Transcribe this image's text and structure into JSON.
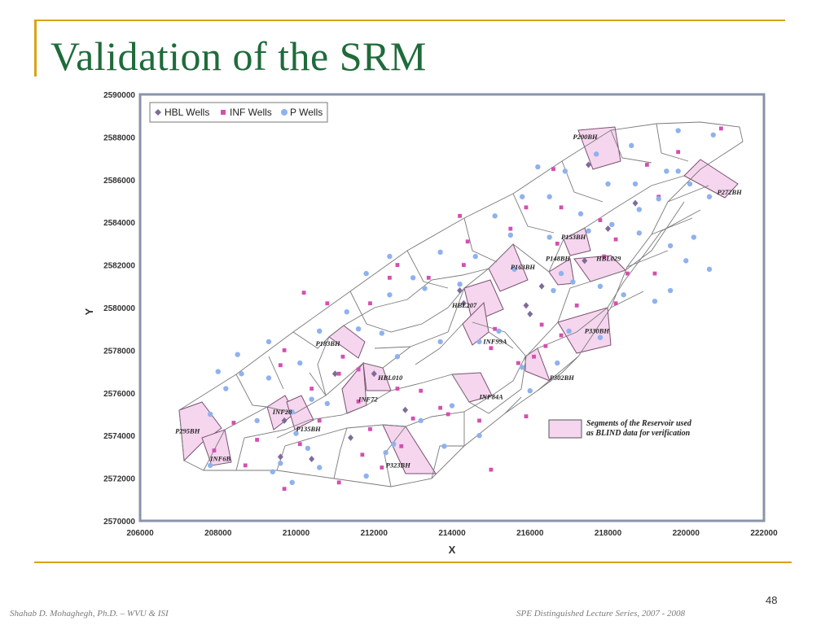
{
  "slide": {
    "title": "Validation of  the SRM",
    "page_number": "48",
    "footer_left": "Shahab D. Mohaghegh, Ph.D. – WVU & ISI",
    "footer_right": "SPE Distinguished Lecture Series, 2007 - 2008",
    "colors": {
      "title": "#1f6b3b",
      "accent": "#d8a316"
    }
  },
  "chart_data": {
    "type": "scatter",
    "xlabel": "X",
    "ylabel": "Y",
    "xlim": [
      206000,
      222000
    ],
    "ylim": [
      2570000,
      2590000
    ],
    "x_ticks": [
      "206000",
      "208000",
      "210000",
      "212000",
      "214000",
      "216000",
      "218000",
      "220000",
      "222000"
    ],
    "y_ticks": [
      "2570000",
      "2572000",
      "2574000",
      "2576000",
      "2578000",
      "2580000",
      "2582000",
      "2584000",
      "2586000",
      "2588000",
      "2590000"
    ],
    "legend": {
      "placement": "top-left",
      "items": [
        {
          "label": "HBL Wells",
          "color": "#7f6b99",
          "marker": "diamond"
        },
        {
          "label": "INF Wells",
          "color": "#d54fb0",
          "marker": "square"
        },
        {
          "label": "P Wells",
          "color": "#8fb2ee",
          "marker": "circle"
        }
      ]
    },
    "blind_legend": {
      "text_line1": "Segments of the Reservoir used",
      "text_line2": "as BLIND data for verification",
      "color": "#f5d6ee"
    },
    "series": [
      {
        "name": "HBL Wells",
        "color": "#7f6b99",
        "marker": "diamond",
        "points": [
          [
            217500,
            2586700
          ],
          [
            218700,
            2584900
          ],
          [
            218000,
            2583700
          ],
          [
            217400,
            2582200
          ],
          [
            216300,
            2581000
          ],
          [
            215900,
            2580100
          ],
          [
            216000,
            2579700
          ],
          [
            214200,
            2580800
          ],
          [
            214300,
            2580200
          ],
          [
            212000,
            2576900
          ],
          [
            211000,
            2576900
          ],
          [
            212800,
            2575200
          ],
          [
            211400,
            2573900
          ],
          [
            210400,
            2572900
          ],
          [
            209600,
            2573000
          ],
          [
            209700,
            2574700
          ]
        ]
      },
      {
        "name": "INF Wells",
        "color": "#d54fb0",
        "marker": "square",
        "points": [
          [
            220900,
            2588400
          ],
          [
            219800,
            2587300
          ],
          [
            219000,
            2586700
          ],
          [
            216600,
            2586500
          ],
          [
            219300,
            2585200
          ],
          [
            217800,
            2584100
          ],
          [
            218200,
            2583200
          ],
          [
            216800,
            2584700
          ],
          [
            215900,
            2584700
          ],
          [
            214200,
            2584300
          ],
          [
            215500,
            2583700
          ],
          [
            216700,
            2583000
          ],
          [
            214400,
            2583100
          ],
          [
            214300,
            2582000
          ],
          [
            213400,
            2581400
          ],
          [
            212600,
            2582000
          ],
          [
            212400,
            2581400
          ],
          [
            210200,
            2580700
          ],
          [
            210800,
            2580200
          ],
          [
            211900,
            2580200
          ],
          [
            210600,
            2578900
          ],
          [
            209700,
            2578000
          ],
          [
            209600,
            2577300
          ],
          [
            211200,
            2577700
          ],
          [
            211600,
            2577100
          ],
          [
            211100,
            2576900
          ],
          [
            211600,
            2575600
          ],
          [
            212600,
            2576200
          ],
          [
            213200,
            2576100
          ],
          [
            213700,
            2575300
          ],
          [
            213000,
            2574800
          ],
          [
            213900,
            2575000
          ],
          [
            214700,
            2574700
          ],
          [
            215000,
            2578100
          ],
          [
            215100,
            2579000
          ],
          [
            215700,
            2577400
          ],
          [
            216100,
            2577700
          ],
          [
            216400,
            2578200
          ],
          [
            216800,
            2578700
          ],
          [
            216300,
            2579200
          ],
          [
            217200,
            2580100
          ],
          [
            218200,
            2580200
          ],
          [
            218500,
            2581600
          ],
          [
            219200,
            2581600
          ],
          [
            212700,
            2573500
          ],
          [
            212200,
            2572500
          ],
          [
            211900,
            2574300
          ],
          [
            211700,
            2573100
          ],
          [
            210600,
            2574700
          ],
          [
            210100,
            2573600
          ],
          [
            209000,
            2573800
          ],
          [
            208400,
            2574600
          ],
          [
            208700,
            2572600
          ],
          [
            207900,
            2573300
          ],
          [
            209700,
            2571500
          ],
          [
            211100,
            2571800
          ],
          [
            215000,
            2572400
          ],
          [
            215900,
            2574900
          ],
          [
            217900,
            2582400
          ],
          [
            210400,
            2576200
          ]
        ]
      },
      {
        "name": "P Wells",
        "color": "#8fb2ee",
        "marker": "circle",
        "points": [
          [
            219800,
            2588300
          ],
          [
            220700,
            2588100
          ],
          [
            218600,
            2587600
          ],
          [
            217700,
            2587200
          ],
          [
            216900,
            2586400
          ],
          [
            216200,
            2586600
          ],
          [
            218000,
            2585800
          ],
          [
            218700,
            2585800
          ],
          [
            219500,
            2586400
          ],
          [
            219800,
            2586400
          ],
          [
            220100,
            2585800
          ],
          [
            220600,
            2585200
          ],
          [
            220200,
            2583300
          ],
          [
            219600,
            2582900
          ],
          [
            218800,
            2583500
          ],
          [
            218100,
            2583900
          ],
          [
            217300,
            2584400
          ],
          [
            216500,
            2585200
          ],
          [
            215800,
            2585200
          ],
          [
            215100,
            2584300
          ],
          [
            215500,
            2583400
          ],
          [
            216500,
            2583300
          ],
          [
            217500,
            2583600
          ],
          [
            218800,
            2584600
          ],
          [
            219300,
            2585100
          ],
          [
            216800,
            2581600
          ],
          [
            217100,
            2581200
          ],
          [
            215600,
            2581800
          ],
          [
            216600,
            2580800
          ],
          [
            217800,
            2581000
          ],
          [
            218400,
            2580600
          ],
          [
            219200,
            2580300
          ],
          [
            219600,
            2580800
          ],
          [
            220000,
            2582200
          ],
          [
            220600,
            2581800
          ],
          [
            214600,
            2582400
          ],
          [
            213700,
            2582600
          ],
          [
            212400,
            2582400
          ],
          [
            211800,
            2581600
          ],
          [
            213000,
            2581400
          ],
          [
            214200,
            2581100
          ],
          [
            213300,
            2580900
          ],
          [
            212400,
            2580600
          ],
          [
            211300,
            2579800
          ],
          [
            211600,
            2579000
          ],
          [
            212200,
            2578800
          ],
          [
            213700,
            2578400
          ],
          [
            214700,
            2578400
          ],
          [
            215200,
            2578900
          ],
          [
            215800,
            2577200
          ],
          [
            216700,
            2577400
          ],
          [
            217000,
            2578900
          ],
          [
            217800,
            2578600
          ],
          [
            212600,
            2577700
          ],
          [
            210600,
            2578900
          ],
          [
            209300,
            2578400
          ],
          [
            208500,
            2577800
          ],
          [
            208000,
            2577000
          ],
          [
            208600,
            2576900
          ],
          [
            209300,
            2576700
          ],
          [
            210100,
            2577400
          ],
          [
            210400,
            2575700
          ],
          [
            210800,
            2575500
          ],
          [
            209900,
            2575100
          ],
          [
            213200,
            2574700
          ],
          [
            214000,
            2575400
          ],
          [
            214700,
            2574000
          ],
          [
            213800,
            2573500
          ],
          [
            212300,
            2573200
          ],
          [
            212500,
            2573600
          ],
          [
            211800,
            2572100
          ],
          [
            210600,
            2572500
          ],
          [
            209600,
            2572700
          ],
          [
            209400,
            2572300
          ],
          [
            209900,
            2571800
          ],
          [
            207800,
            2572600
          ],
          [
            207800,
            2575000
          ],
          [
            209000,
            2574700
          ],
          [
            210000,
            2574100
          ],
          [
            210300,
            2573400
          ],
          [
            208200,
            2576200
          ],
          [
            216000,
            2576100
          ]
        ]
      }
    ],
    "segment_labels": [
      {
        "label": "P200BH",
        "x": 217100,
        "y": 2587900
      },
      {
        "label": "P272BH",
        "x": 220800,
        "y": 2585300
      },
      {
        "label": "P153BH",
        "x": 216800,
        "y": 2583200
      },
      {
        "label": "P148BH",
        "x": 216400,
        "y": 2582200
      },
      {
        "label": "P163BH",
        "x": 215500,
        "y": 2581800
      },
      {
        "label": "HBL029",
        "x": 217700,
        "y": 2582200
      },
      {
        "label": "HBL207",
        "x": 214000,
        "y": 2580000
      },
      {
        "label": "P330BH",
        "x": 217400,
        "y": 2578800
      },
      {
        "label": "INF99A",
        "x": 214800,
        "y": 2578300
      },
      {
        "label": "P183BH",
        "x": 210500,
        "y": 2578200
      },
      {
        "label": "P302BH",
        "x": 216500,
        "y": 2576600
      },
      {
        "label": "HBL010",
        "x": 212100,
        "y": 2576600
      },
      {
        "label": "INF84A",
        "x": 214700,
        "y": 2575700
      },
      {
        "label": "INF72",
        "x": 211600,
        "y": 2575600
      },
      {
        "label": "INF28",
        "x": 209400,
        "y": 2575000
      },
      {
        "label": "P135BH",
        "x": 210000,
        "y": 2574200
      },
      {
        "label": "P295BH",
        "x": 206900,
        "y": 2574100
      },
      {
        "label": "INF6B",
        "x": 207800,
        "y": 2572800
      },
      {
        "label": "P323BH",
        "x": 212300,
        "y": 2572500
      }
    ]
  }
}
